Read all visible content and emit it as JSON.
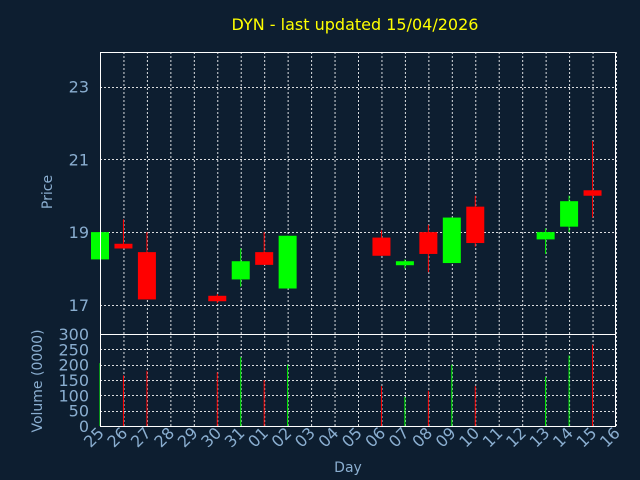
{
  "colors": {
    "background": "#0d1e30",
    "up": "#00ff00",
    "down": "#ff0000",
    "title": "#ffff00",
    "axis_text": "#8aaed0",
    "grid": "#ffffff"
  },
  "chart_data": {
    "type": "candlestick",
    "title": "DYN - last updated 15/04/2026",
    "xlabel": "Day",
    "ylabel": "Price",
    "volume_label": "Volume (0000)",
    "grid": true,
    "categories": [
      "25",
      "26",
      "27",
      "28",
      "29",
      "30",
      "31",
      "01",
      "02",
      "03",
      "04",
      "05",
      "06",
      "07",
      "08",
      "09",
      "10",
      "11",
      "12",
      "13",
      "14",
      "15",
      "16"
    ],
    "price_ylim": [
      16.2,
      23.95
    ],
    "price_ticks": [
      17,
      19,
      21,
      23
    ],
    "volume_ylim": [
      0,
      300
    ],
    "volume_ticks": [
      0,
      50,
      100,
      150,
      200,
      250,
      300
    ],
    "candles": [
      {
        "day": "25",
        "open": 18.25,
        "high": 19.0,
        "low": 18.25,
        "close": 19.0,
        "volume": 205
      },
      {
        "day": "26",
        "open": 18.68,
        "high": 19.35,
        "low": 18.55,
        "close": 18.55,
        "volume": 165
      },
      {
        "day": "27",
        "open": 18.45,
        "high": 19.0,
        "low": 17.15,
        "close": 17.15,
        "volume": 180
      },
      {
        "day": "30",
        "open": 17.25,
        "high": 17.3,
        "low": 17.05,
        "close": 17.1,
        "volume": 175
      },
      {
        "day": "31",
        "open": 17.7,
        "high": 18.55,
        "low": 17.5,
        "close": 18.2,
        "volume": 225
      },
      {
        "day": "01",
        "open": 18.45,
        "high": 19.0,
        "low": 18.1,
        "close": 18.1,
        "volume": 150
      },
      {
        "day": "02",
        "open": 17.45,
        "high": 18.9,
        "low": 17.45,
        "close": 18.9,
        "volume": 200
      },
      {
        "day": "06",
        "open": 18.85,
        "high": 19.05,
        "low": 18.35,
        "close": 18.35,
        "volume": 130
      },
      {
        "day": "07",
        "open": 18.1,
        "high": 18.25,
        "low": 18.0,
        "close": 18.2,
        "volume": 95
      },
      {
        "day": "08",
        "open": 19.0,
        "high": 19.2,
        "low": 17.9,
        "close": 18.4,
        "volume": 115
      },
      {
        "day": "09",
        "open": 18.15,
        "high": 19.4,
        "low": 18.15,
        "close": 19.4,
        "volume": 200
      },
      {
        "day": "10",
        "open": 19.7,
        "high": 20.0,
        "low": 18.6,
        "close": 18.7,
        "volume": 130
      },
      {
        "day": "13",
        "open": 18.8,
        "high": 19.1,
        "low": 18.4,
        "close": 19.0,
        "volume": 160
      },
      {
        "day": "14",
        "open": 19.15,
        "high": 20.0,
        "low": 19.0,
        "close": 19.85,
        "volume": 230
      },
      {
        "day": "15",
        "open": 20.15,
        "high": 21.5,
        "low": 19.4,
        "close": 20.0,
        "volume": 265
      }
    ]
  }
}
